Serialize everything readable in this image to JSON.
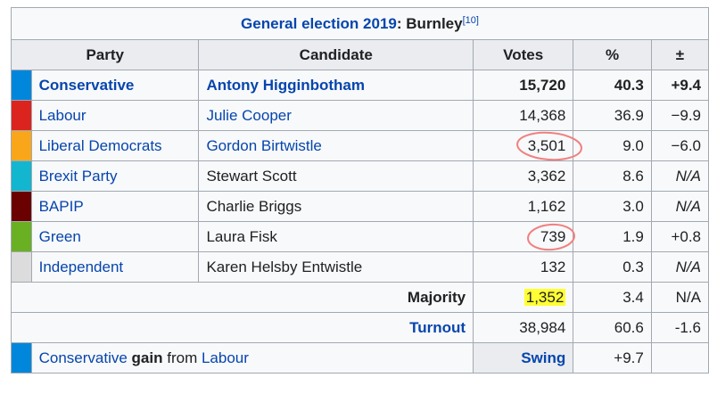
{
  "caption": {
    "title": "General election 2019",
    "separator": ":",
    "place": "Burnley",
    "ref": "[10]"
  },
  "headers": {
    "party": "Party",
    "candidate": "Candidate",
    "votes": "Votes",
    "percent": "%",
    "change": "±"
  },
  "rows": [
    {
      "color": "#0087dc",
      "party": "Conservative",
      "candidate": "Antony Higginbotham",
      "votes": "15,720",
      "percent": "40.3",
      "change": "+9.4"
    },
    {
      "color": "#dc241f",
      "party": "Labour",
      "candidate": "Julie Cooper",
      "votes": "14,368",
      "percent": "36.9",
      "change": "−9.9"
    },
    {
      "color": "#faa61a",
      "party": "Liberal Democrats",
      "candidate": "Gordon Birtwistle",
      "votes": "3,501",
      "percent": "9.0",
      "change": "−6.0"
    },
    {
      "color": "#12b6cf",
      "party": "Brexit Party",
      "candidate": "Stewart Scott",
      "votes": "3,362",
      "percent": "8.6",
      "change": "N/A"
    },
    {
      "color": "#6b0000",
      "party": "BAPIP",
      "candidate": "Charlie Briggs",
      "votes": "1,162",
      "percent": "3.0",
      "change": "N/A"
    },
    {
      "color": "#6ab023",
      "party": "Green",
      "candidate": "Laura Fisk",
      "votes": "739",
      "percent": "1.9",
      "change": "+0.8"
    },
    {
      "color": "#dcdcdc",
      "party": "Independent",
      "candidate": "Karen Helsby Entwistle",
      "votes": "132",
      "percent": "0.3",
      "change": "N/A"
    }
  ],
  "majority": {
    "label": "Majority",
    "votes": "1,352",
    "percent": "3.4",
    "change": "N/A"
  },
  "turnout": {
    "label": "Turnout",
    "votes": "38,984",
    "percent": "60.6",
    "change": "-1.6"
  },
  "gain": {
    "color": "#0087dc",
    "party": "Conservative",
    "gain_word": "gain",
    "from_word": "from",
    "from_party": "Labour",
    "swing_label": "Swing",
    "swing_value": "+9.7"
  },
  "annotations": {
    "circle_color": "#f08080",
    "highlight_color": "#ffff33"
  }
}
